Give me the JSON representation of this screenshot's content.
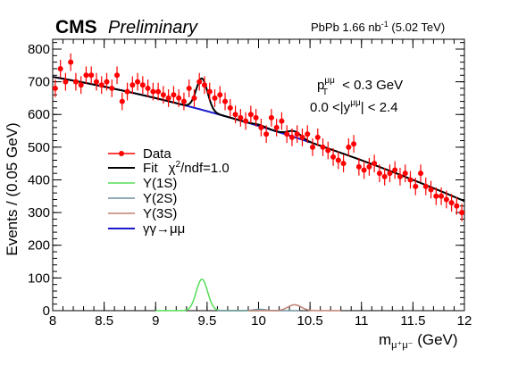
{
  "header": {
    "experiment": "CMS",
    "status": "Preliminary",
    "lumi_text": "PbPb 1.66 nb",
    "lumi_sup": "-1",
    "energy": " (5.02 TeV)"
  },
  "cuts": {
    "line1_p": "p",
    "line1_sub": "T",
    "line1_sup": "μμ",
    "line1_rest": " < 0.3 GeV",
    "line2_pre": "0.0 <|y",
    "line2_sup": "μμ",
    "line2_post": "| < 2.4"
  },
  "legend": {
    "data": "Data",
    "fit": "Fit",
    "fit_chi2_pre": "χ",
    "fit_chi2_sup": "2",
    "fit_chi2_post": "/ndf=1.0",
    "y1s": "Υ(1S)",
    "y2s": "Υ(2S)",
    "y3s": "Υ(3S)",
    "gg": "γγ→μμ"
  },
  "colors": {
    "data": "#ff0000",
    "fit": "#000000",
    "y1s": "#55dd55",
    "y2s": "#6f8f9f",
    "y3s": "#c08070",
    "gg": "#1a1acc"
  },
  "chart_data": {
    "type": "scatter",
    "xlabel": "m",
    "xlabel_sub": "μ⁺μ⁻",
    "xlabel_unit": " (GeV)",
    "ylabel": "Events / (0.05 GeV)",
    "xlim": [
      8,
      12
    ],
    "ylim": [
      0,
      830
    ],
    "x_ticks": [
      "8",
      "8.5",
      "9",
      "9.5",
      "10",
      "10.5",
      "11",
      "11.5",
      "12"
    ],
    "y_ticks": [
      "0",
      "100",
      "200",
      "300",
      "400",
      "500",
      "600",
      "700",
      "800"
    ],
    "data_points": {
      "x": [
        8.025,
        8.075,
        8.125,
        8.175,
        8.225,
        8.275,
        8.325,
        8.375,
        8.425,
        8.475,
        8.525,
        8.575,
        8.625,
        8.675,
        8.725,
        8.775,
        8.825,
        8.875,
        8.925,
        8.975,
        9.025,
        9.075,
        9.125,
        9.175,
        9.225,
        9.275,
        9.325,
        9.375,
        9.425,
        9.475,
        9.525,
        9.575,
        9.625,
        9.675,
        9.725,
        9.775,
        9.825,
        9.875,
        9.925,
        9.975,
        10.025,
        10.075,
        10.125,
        10.175,
        10.225,
        10.275,
        10.325,
        10.375,
        10.425,
        10.475,
        10.525,
        10.575,
        10.625,
        10.675,
        10.725,
        10.775,
        10.825,
        10.875,
        10.925,
        10.975,
        11.025,
        11.075,
        11.125,
        11.175,
        11.225,
        11.275,
        11.325,
        11.375,
        11.425,
        11.475,
        11.525,
        11.575,
        11.625,
        11.675,
        11.725,
        11.775,
        11.825,
        11.875,
        11.925,
        11.975
      ],
      "y": [
        680,
        740,
        700,
        760,
        700,
        690,
        720,
        720,
        700,
        690,
        700,
        680,
        720,
        640,
        670,
        690,
        700,
        690,
        680,
        670,
        670,
        660,
        650,
        660,
        650,
        640,
        680,
        650,
        700,
        690,
        670,
        650,
        660,
        640,
        620,
        600,
        590,
        580,
        600,
        590,
        560,
        540,
        590,
        560,
        580,
        540,
        530,
        540,
        530,
        540,
        500,
        530,
        500,
        490,
        470,
        460,
        450,
        500,
        510,
        440,
        430,
        440,
        450,
        420,
        410,
        420,
        430,
        410,
        420,
        400,
        380,
        420,
        380,
        370,
        350,
        350,
        340,
        330,
        320,
        300
      ],
      "err": 27
    },
    "fit_model": {
      "background": "quadratic with values 715 at 8.0, 565 at 10.0, 335 at 12.0 (events)",
      "Y1S": {
        "mean": 9.45,
        "sigma": 0.055,
        "amplitude": 96
      },
      "Y2S": {
        "mean": 10.01,
        "sigma": 0.06,
        "amplitude": 4
      },
      "Y3S": {
        "mean": 10.35,
        "sigma": 0.065,
        "amplitude": 18
      }
    },
    "gg_range": [
      8.0,
      10.5
    ]
  }
}
